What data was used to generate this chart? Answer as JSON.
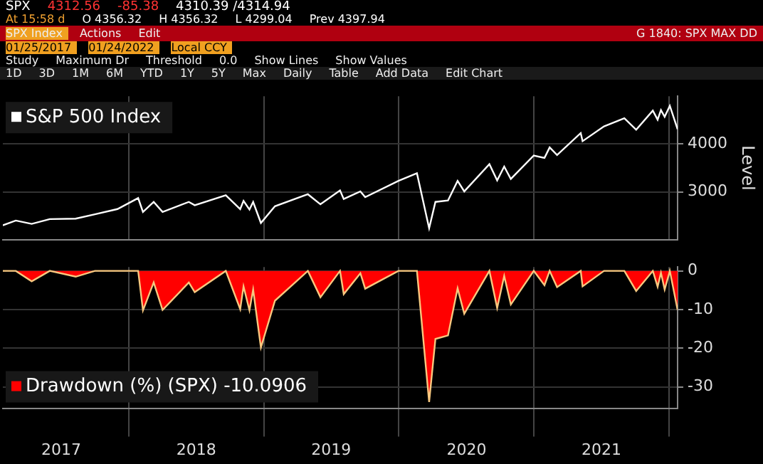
{
  "chart_data": [
    {
      "type": "line",
      "title": null,
      "annotations": [
        "SPX",
        "4312.56",
        "-85.38",
        "4310.39 /4314.94",
        "At 15:58 d",
        "O 4356.32",
        "H 4356.32",
        "L 4299.04",
        "Prev 4397.94",
        "SPX Index",
        "Actions",
        "Edit",
        "G 1840: SPX MAX DD",
        "01/25/2017",
        "01/24/2022",
        "Local CCY",
        "Study",
        "Maximum Dr",
        "Threshold",
        "0.0",
        "Show Lines",
        "Show Values",
        "1D",
        "3D",
        "1M",
        "6M",
        "YTD",
        "1Y",
        "5Y",
        "Max",
        "Daily",
        "Table",
        "Add Data",
        "Edit Chart"
      ],
      "x": [
        "2017-01-25",
        "2017-03-01",
        "2017-04-13",
        "2017-06-01",
        "2017-08-10",
        "2017-10-01",
        "2017-12-01",
        "2018-01-26",
        "2018-02-08",
        "2018-03-09",
        "2018-04-02",
        "2018-06-12",
        "2018-06-28",
        "2018-09-20",
        "2018-10-29",
        "2018-11-07",
        "2018-11-23",
        "2018-12-03",
        "2018-12-24",
        "2019-01-31",
        "2019-04-30",
        "2019-06-03",
        "2019-07-26",
        "2019-08-05",
        "2019-09-19",
        "2019-10-02",
        "2019-12-31",
        "2020-02-19",
        "2020-03-23",
        "2020-04-09",
        "2020-05-13",
        "2020-06-08",
        "2020-06-26",
        "2020-09-02",
        "2020-09-23",
        "2020-10-12",
        "2020-10-30",
        "2020-12-31",
        "2021-01-29",
        "2021-02-12",
        "2021-03-04",
        "2021-05-07",
        "2021-05-12",
        "2021-07-09",
        "2021-09-02",
        "2021-10-04",
        "2021-11-18",
        "2021-12-01",
        "2021-12-10",
        "2021-12-20",
        "2022-01-03",
        "2022-01-24"
      ],
      "series": [
        {
          "name": "S&P 500 Index",
          "color": "#ffffff",
          "values": [
            2300,
            2400,
            2330,
            2430,
            2440,
            2530,
            2640,
            2870,
            2580,
            2790,
            2580,
            2790,
            2720,
            2930,
            2640,
            2810,
            2630,
            2790,
            2350,
            2700,
            2950,
            2740,
            3030,
            2850,
            3010,
            2890,
            3230,
            3390,
            2240,
            2790,
            2820,
            3230,
            3010,
            3580,
            3240,
            3530,
            3270,
            3760,
            3710,
            3930,
            3770,
            4230,
            4060,
            4370,
            4540,
            4300,
            4700,
            4510,
            4710,
            4570,
            4800,
            4310
          ]
        }
      ],
      "xlim": [
        "2017-01-25",
        "2022-01-24"
      ],
      "xticks": [
        {
          "value": "2018-01-01",
          "label": null
        },
        {
          "value": "2019-01-01",
          "label": null
        },
        {
          "value": "2020-01-01",
          "label": null
        },
        {
          "value": "2021-01-01",
          "label": null
        },
        {
          "value": "2022-01-01",
          "label": null
        }
      ],
      "ylim": [
        2000,
        5000
      ],
      "yticks": [
        3000,
        4000
      ],
      "ylabel": "Level",
      "grid": true,
      "legend": "top left",
      "tick_labels": "y"
    },
    {
      "type": "area",
      "x": [
        "2017-01-25",
        "2017-03-01",
        "2017-04-13",
        "2017-06-01",
        "2017-08-10",
        "2017-10-01",
        "2017-12-01",
        "2018-01-26",
        "2018-02-08",
        "2018-03-09",
        "2018-04-02",
        "2018-06-12",
        "2018-06-28",
        "2018-09-20",
        "2018-10-29",
        "2018-11-07",
        "2018-11-23",
        "2018-12-03",
        "2018-12-24",
        "2019-01-31",
        "2019-04-30",
        "2019-06-03",
        "2019-07-26",
        "2019-08-05",
        "2019-09-19",
        "2019-10-02",
        "2019-12-31",
        "2020-02-19",
        "2020-03-23",
        "2020-04-09",
        "2020-05-13",
        "2020-06-08",
        "2020-06-26",
        "2020-09-02",
        "2020-09-23",
        "2020-10-12",
        "2020-10-30",
        "2020-12-31",
        "2021-01-29",
        "2021-02-12",
        "2021-03-04",
        "2021-05-07",
        "2021-05-12",
        "2021-07-09",
        "2021-09-02",
        "2021-10-04",
        "2021-11-18",
        "2021-12-01",
        "2021-12-10",
        "2021-12-20",
        "2022-01-03",
        "2022-01-24"
      ],
      "series": [
        {
          "name": "Drawdown (%) (SPX) -10.0906",
          "color": "#ff0000",
          "values": [
            0,
            0,
            -2.7,
            0,
            -1.5,
            0,
            0,
            0,
            -10.2,
            -3,
            -10.1,
            -3,
            -5.5,
            0,
            -9.9,
            -4,
            -10.2,
            -4.8,
            -19.8,
            -7.7,
            0,
            -6.8,
            0,
            -6,
            -0.6,
            -4.6,
            0,
            0,
            -33.9,
            -17.6,
            -16.7,
            -4.5,
            -11.1,
            0,
            -9.6,
            -1.3,
            -8.7,
            0,
            -3.7,
            0,
            -4.2,
            0,
            -4,
            0,
            0,
            -5.2,
            0,
            -4.1,
            -0.5,
            -4.8,
            0,
            -10.1
          ]
        }
      ],
      "xlim": [
        "2017-01-25",
        "2022-01-24"
      ],
      "xticks": [
        {
          "value": "2017-07-02",
          "label": "2017"
        },
        {
          "value": "2018-01-01",
          "label": null
        },
        {
          "value": "2018-07-02",
          "label": "2018"
        },
        {
          "value": "2019-01-01",
          "label": null
        },
        {
          "value": "2019-07-02",
          "label": "2019"
        },
        {
          "value": "2020-01-01",
          "label": null
        },
        {
          "value": "2020-07-02",
          "label": "2020"
        },
        {
          "value": "2021-01-01",
          "label": null
        },
        {
          "value": "2021-07-02",
          "label": "2021"
        },
        {
          "value": "2022-01-01",
          "label": null
        }
      ],
      "ylim": [
        -35.5,
        1
      ],
      "yticks": [
        0,
        -10,
        -20,
        -30
      ],
      "grid": true,
      "legend": "bottom left"
    }
  ]
}
